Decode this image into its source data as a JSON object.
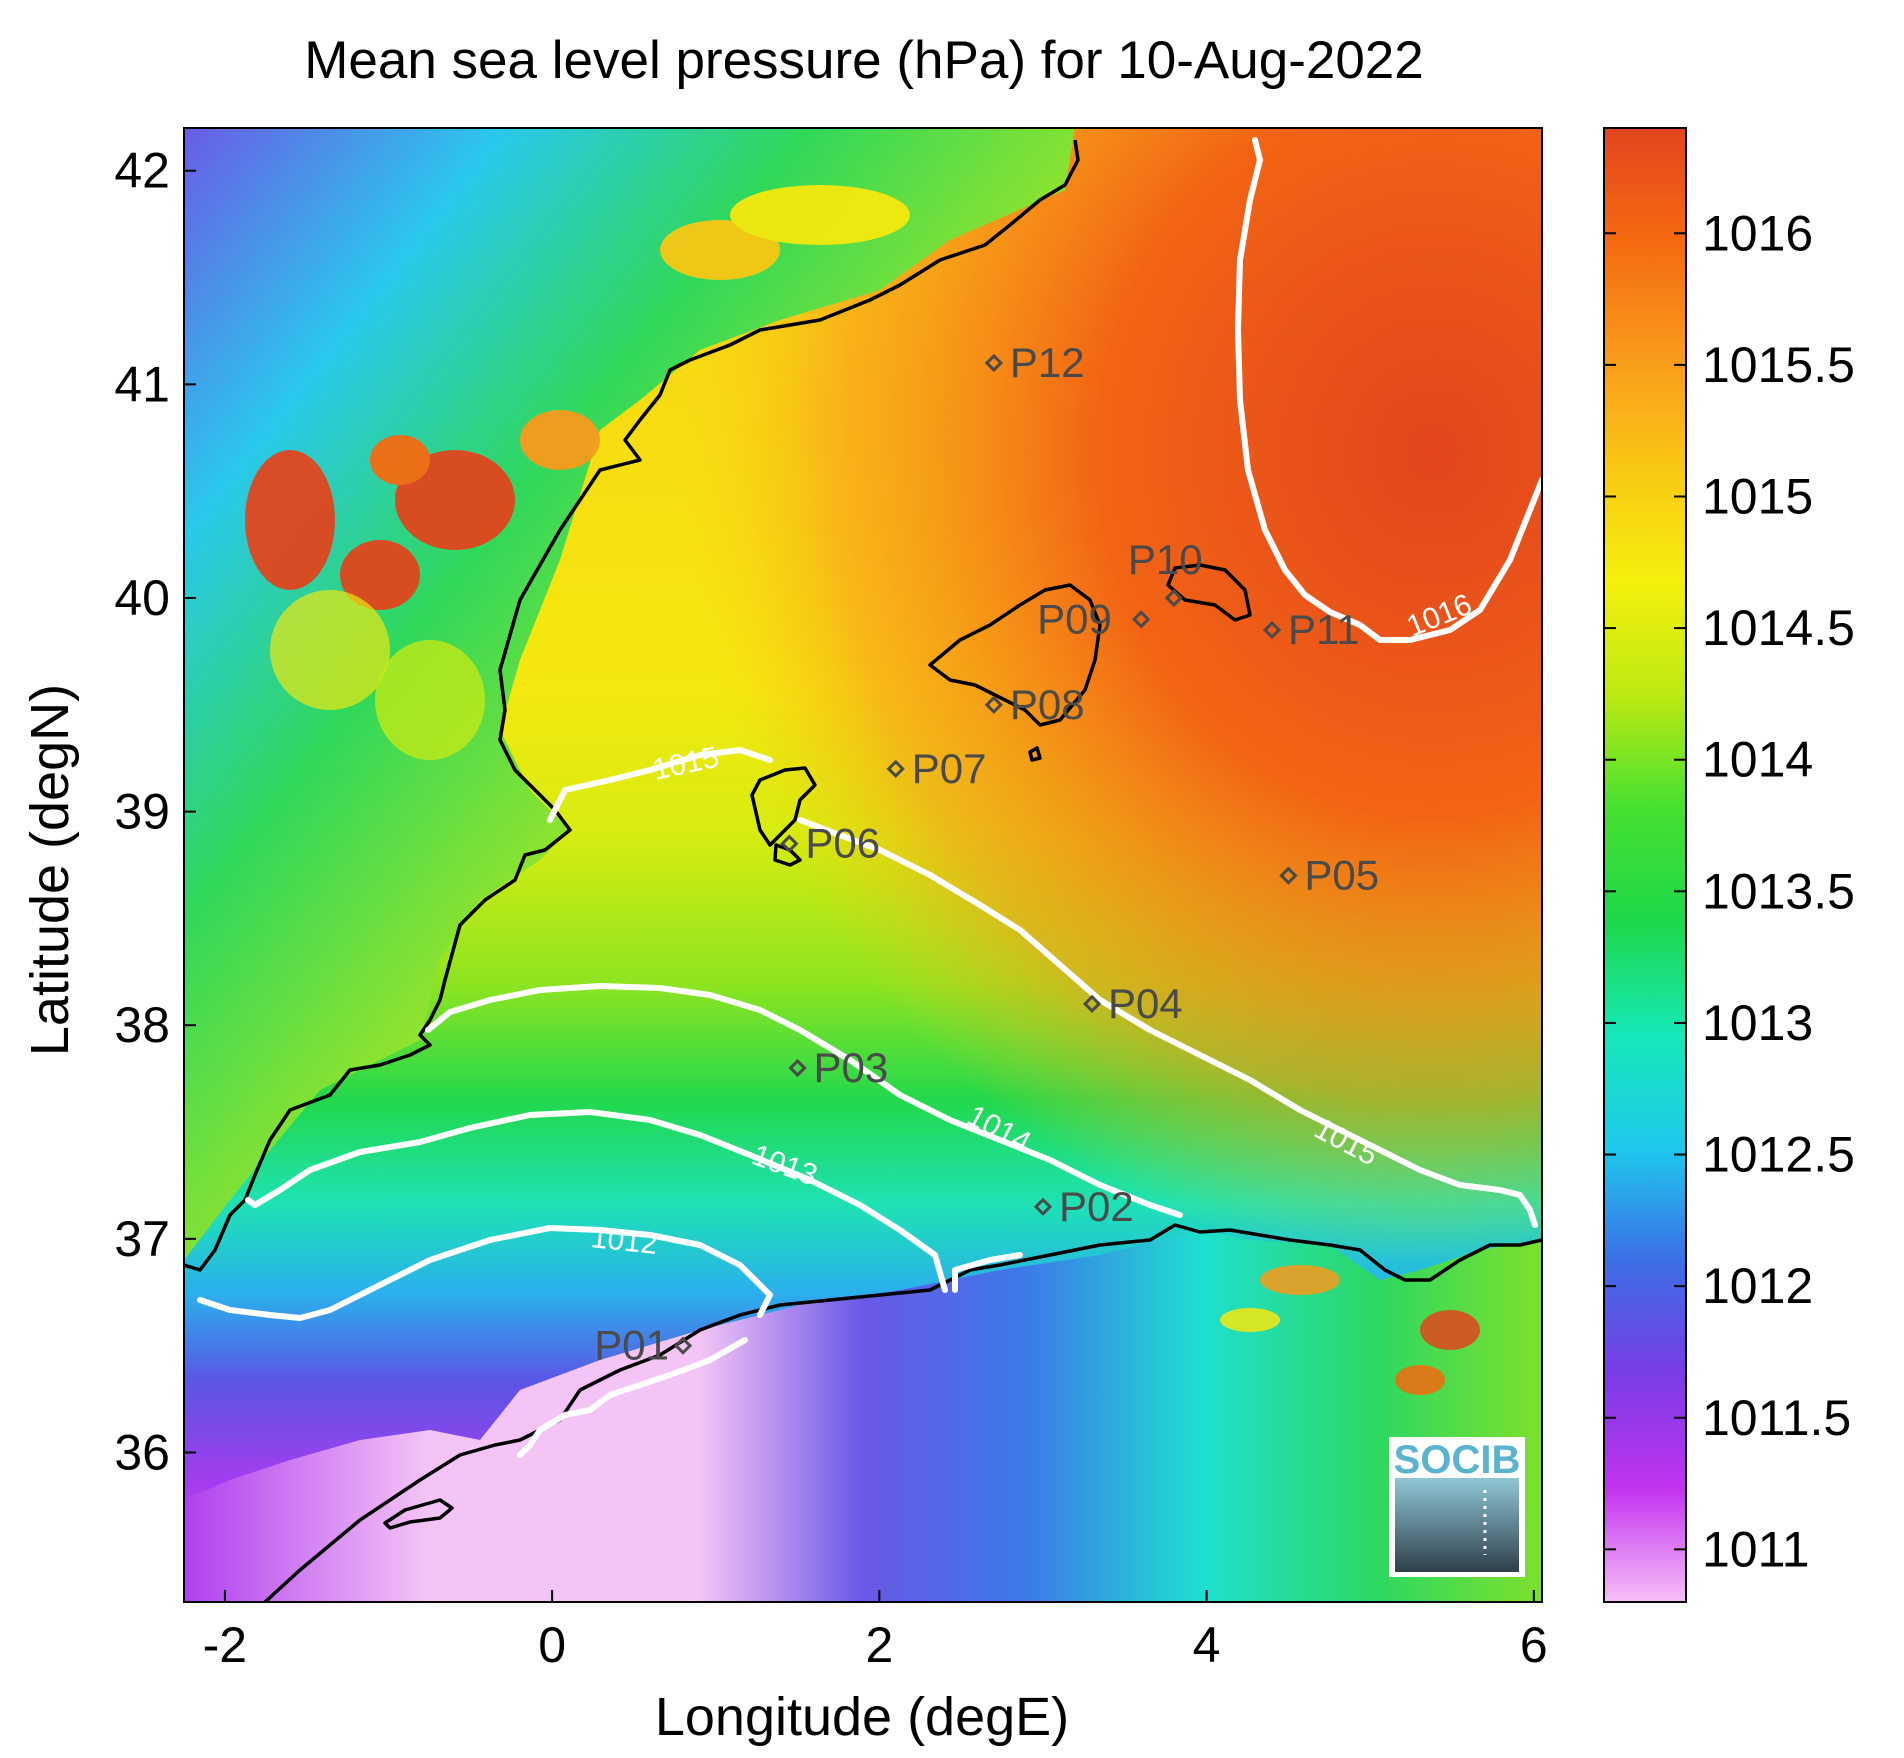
{
  "title": "Mean sea level pressure (hPa) for 10-Aug-2022",
  "xlabel": "Longitude (degE)",
  "ylabel": "Latitude (degN)",
  "x_ticks": [
    "-2",
    "0",
    "2",
    "4",
    "6"
  ],
  "y_ticks": [
    "42",
    "41",
    "40",
    "39",
    "38",
    "37",
    "36"
  ],
  "colorbar": {
    "ticks": [
      "1016",
      "1015.5",
      "1015",
      "1014.5",
      "1014",
      "1013.5",
      "1013",
      "1012.5",
      "1012",
      "1011.5",
      "1011"
    ],
    "stops": [
      "#f7bff7",
      "#c233f0",
      "#7a3ce6",
      "#3c6ee6",
      "#1ec8ec",
      "#16e8b8",
      "#1ed84a",
      "#46e030",
      "#bdea12",
      "#f5f00c",
      "#f9c814",
      "#f99a1c",
      "#f56a10",
      "#e2451e"
    ]
  },
  "contour_labels": [
    "1012",
    "1013",
    "1014",
    "1015",
    "1015",
    "1016"
  ],
  "stations": [
    {
      "id": "P01",
      "lon": 0.8,
      "lat": 36.5
    },
    {
      "id": "P02",
      "lon": 3.0,
      "lat": 37.15
    },
    {
      "id": "P03",
      "lon": 1.5,
      "lat": 37.8
    },
    {
      "id": "P04",
      "lon": 3.3,
      "lat": 38.1
    },
    {
      "id": "P05",
      "lon": 4.5,
      "lat": 38.7
    },
    {
      "id": "P06",
      "lon": 1.45,
      "lat": 38.85
    },
    {
      "id": "P07",
      "lon": 2.1,
      "lat": 39.2
    },
    {
      "id": "P08",
      "lon": 2.7,
      "lat": 39.5
    },
    {
      "id": "P09",
      "lon": 3.6,
      "lat": 39.9
    },
    {
      "id": "P10",
      "lon": 3.8,
      "lat": 40.0
    },
    {
      "id": "P11",
      "lon": 4.4,
      "lat": 39.85
    },
    {
      "id": "P12",
      "lon": 2.7,
      "lat": 41.1
    }
  ],
  "logo_text": "SOCIB",
  "map": {
    "lon_range": [
      -2.25,
      6.05
    ],
    "lat_range": [
      35.3,
      42.2
    ],
    "colorbar_range": [
      1010.8,
      1016.4
    ]
  }
}
